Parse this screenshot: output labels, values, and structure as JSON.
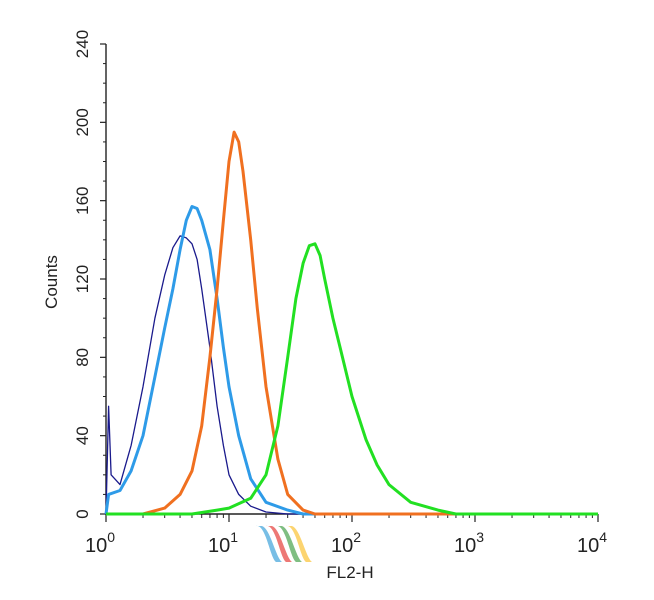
{
  "chart_data": {
    "type": "line",
    "title": "",
    "xlabel": "FL2-H",
    "ylabel": "Counts",
    "xscale": "log",
    "xlim": [
      1,
      10000
    ],
    "ylim": [
      0,
      240
    ],
    "x_ticks": [
      {
        "base": "10",
        "exp": "0",
        "value": 1
      },
      {
        "base": "10",
        "exp": "1",
        "value": 10
      },
      {
        "base": "10",
        "exp": "2",
        "value": 100
      },
      {
        "base": "10",
        "exp": "3",
        "value": 1000
      },
      {
        "base": "10",
        "exp": "4",
        "value": 10000
      }
    ],
    "y_ticks": [
      "0",
      "40",
      "80",
      "120",
      "160",
      "200",
      "240"
    ],
    "grid": false,
    "legend": "none",
    "series": [
      {
        "color": "#1a1a8c",
        "width": 1.3,
        "points": [
          [
            1,
            0
          ],
          [
            1.05,
            55
          ],
          [
            1.1,
            20
          ],
          [
            1.3,
            15
          ],
          [
            1.6,
            35
          ],
          [
            2,
            65
          ],
          [
            2.5,
            100
          ],
          [
            3,
            122
          ],
          [
            3.5,
            136
          ],
          [
            4,
            142
          ],
          [
            4.5,
            141
          ],
          [
            5,
            138
          ],
          [
            5.5,
            130
          ],
          [
            6,
            115
          ],
          [
            7,
            85
          ],
          [
            8,
            55
          ],
          [
            9,
            35
          ],
          [
            10,
            20
          ],
          [
            12,
            10
          ],
          [
            15,
            4
          ],
          [
            20,
            1
          ],
          [
            30,
            0
          ],
          [
            10000,
            0
          ]
        ]
      },
      {
        "color": "#2e9be8",
        "width": 3,
        "points": [
          [
            1,
            0
          ],
          [
            1.05,
            10
          ],
          [
            1.3,
            12
          ],
          [
            1.6,
            22
          ],
          [
            2,
            40
          ],
          [
            2.5,
            70
          ],
          [
            3,
            95
          ],
          [
            3.5,
            115
          ],
          [
            4,
            135
          ],
          [
            4.5,
            150
          ],
          [
            5,
            157
          ],
          [
            5.5,
            156
          ],
          [
            6,
            150
          ],
          [
            7,
            135
          ],
          [
            8,
            110
          ],
          [
            9,
            85
          ],
          [
            10,
            65
          ],
          [
            12,
            40
          ],
          [
            15,
            18
          ],
          [
            20,
            6
          ],
          [
            30,
            2
          ],
          [
            40,
            0
          ],
          [
            10000,
            0
          ]
        ]
      },
      {
        "color": "#f07020",
        "width": 3,
        "points": [
          [
            1,
            0
          ],
          [
            2,
            0
          ],
          [
            3,
            3
          ],
          [
            4,
            10
          ],
          [
            5,
            22
          ],
          [
            6,
            45
          ],
          [
            7,
            80
          ],
          [
            8,
            115
          ],
          [
            9,
            150
          ],
          [
            10,
            180
          ],
          [
            11,
            195
          ],
          [
            12,
            190
          ],
          [
            13,
            175
          ],
          [
            15,
            140
          ],
          [
            17,
            105
          ],
          [
            20,
            65
          ],
          [
            25,
            28
          ],
          [
            30,
            10
          ],
          [
            40,
            2
          ],
          [
            50,
            0
          ],
          [
            10000,
            0
          ]
        ]
      },
      {
        "color": "#22e022",
        "width": 3,
        "points": [
          [
            1,
            0
          ],
          [
            5,
            0
          ],
          [
            8,
            2
          ],
          [
            10,
            3
          ],
          [
            15,
            8
          ],
          [
            20,
            20
          ],
          [
            25,
            45
          ],
          [
            30,
            80
          ],
          [
            35,
            110
          ],
          [
            40,
            128
          ],
          [
            45,
            137
          ],
          [
            50,
            138
          ],
          [
            55,
            132
          ],
          [
            60,
            120
          ],
          [
            70,
            100
          ],
          [
            80,
            85
          ],
          [
            100,
            60
          ],
          [
            130,
            38
          ],
          [
            160,
            25
          ],
          [
            200,
            15
          ],
          [
            300,
            6
          ],
          [
            500,
            2
          ],
          [
            700,
            0
          ],
          [
            10000,
            0
          ]
        ]
      }
    ]
  }
}
